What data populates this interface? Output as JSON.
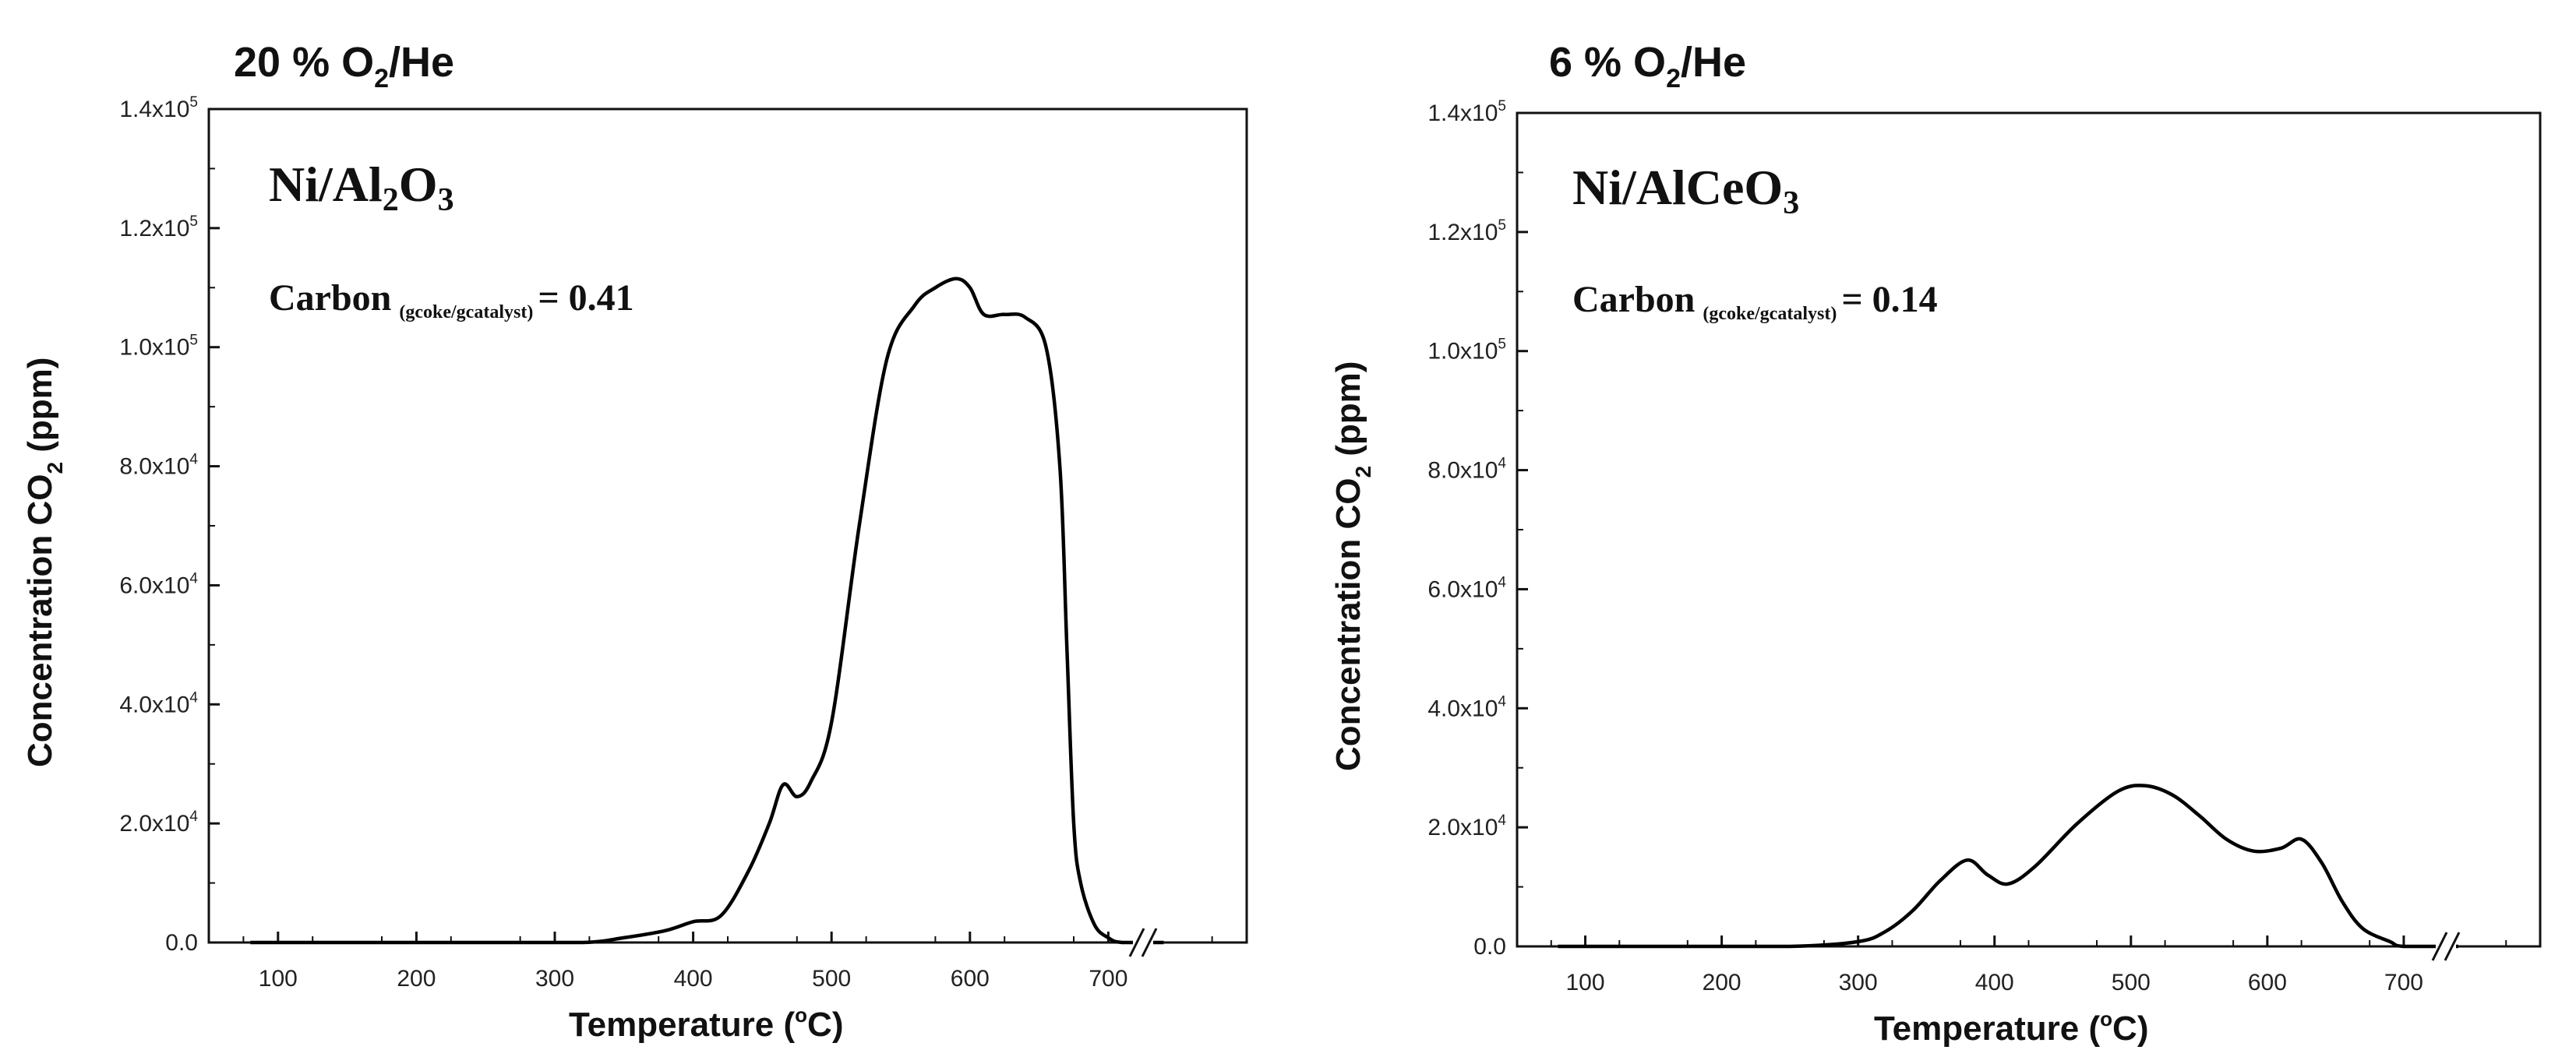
{
  "chart_data": [
    {
      "type": "line",
      "condition_prefix": "20 % O",
      "condition_sub": "2",
      "condition_suffix": "/He",
      "catalyst_main": "Ni/Al",
      "catalyst_sub1": "2",
      "catalyst_mid": "O",
      "catalyst_sub2": "3",
      "carbon_label": "Carbon",
      "carbon_sub": "(gcoke/gcatalyst)",
      "carbon_value": "= 0.41",
      "xlabel_main": "Temperature (",
      "xlabel_sup": "o",
      "xlabel_end": "C)",
      "ylabel_main": "Concentration CO",
      "ylabel_sub": "2",
      "ylabel_end": " (ppm)",
      "x_ticks": [
        "100",
        "200",
        "300",
        "400",
        "500",
        "600",
        "700"
      ],
      "x_tick_values": [
        100,
        200,
        300,
        400,
        500,
        600,
        700
      ],
      "y_tick_mantissa": [
        "0.0",
        "2.0x10",
        "4.0x10",
        "6.0x10",
        "8.0x10",
        "1.0x10",
        "1.2x10",
        "1.4x10"
      ],
      "y_tick_exp": [
        "",
        "4",
        "4",
        "4",
        "4",
        "5",
        "5",
        "5"
      ],
      "y_tick_values": [
        0,
        20000,
        40000,
        60000,
        80000,
        100000,
        120000,
        140000
      ],
      "xlim": [
        50,
        800
      ],
      "ylim": [
        0,
        140000
      ],
      "axis_break_at": 735,
      "series": [
        {
          "name": "CO2",
          "x": [
            80,
            150,
            250,
            320,
            350,
            380,
            400,
            420,
            440,
            455,
            465,
            475,
            485,
            500,
            520,
            540,
            560,
            575,
            590,
            600,
            610,
            625,
            640,
            655,
            665,
            670,
            675,
            680,
            690,
            700,
            710,
            740
          ],
          "values": [
            0,
            0,
            0,
            0,
            800,
            2000,
            3500,
            4500,
            12000,
            20000,
            26500,
            24500,
            27000,
            37000,
            70000,
            98000,
            107000,
            110000,
            111500,
            110000,
            105500,
            105500,
            105000,
            100000,
            80000,
            50000,
            20000,
            10000,
            3000,
            800,
            0,
            0
          ]
        }
      ]
    },
    {
      "type": "line",
      "condition_prefix": "6 % O",
      "condition_sub": "2",
      "condition_suffix": "/He",
      "catalyst_main": "Ni/AlCeO",
      "catalyst_sub1": "3",
      "carbon_label": "Carbon",
      "carbon_sub": "(gcoke/gcatalyst)",
      "carbon_value": "= 0.14",
      "xlabel_main": "Temperature (",
      "xlabel_sup": "o",
      "xlabel_end": "C)",
      "ylabel_main": "Concentration CO",
      "ylabel_sub": "2",
      "ylabel_end": " (ppm)",
      "x_ticks": [
        "100",
        "200",
        "300",
        "400",
        "500",
        "600",
        "700"
      ],
      "x_tick_values": [
        100,
        200,
        300,
        400,
        500,
        600,
        700
      ],
      "y_tick_mantissa": [
        "0.0",
        "2.0x10",
        "4.0x10",
        "6.0x10",
        "8.0x10",
        "1.0x10",
        "1.2x10",
        "1.4x10"
      ],
      "y_tick_exp": [
        "",
        "4",
        "4",
        "4",
        "4",
        "5",
        "5",
        "5"
      ],
      "y_tick_values": [
        0,
        20000,
        40000,
        60000,
        80000,
        100000,
        120000,
        140000
      ],
      "xlim": [
        50,
        800
      ],
      "ylim": [
        0,
        140000
      ],
      "axis_break_at": 735,
      "series": [
        {
          "name": "CO2",
          "x": [
            80,
            150,
            250,
            300,
            320,
            340,
            360,
            380,
            395,
            410,
            430,
            460,
            490,
            510,
            530,
            550,
            570,
            590,
            610,
            625,
            640,
            655,
            670,
            690,
            700,
            740
          ],
          "values": [
            0,
            0,
            0,
            800,
            2500,
            6000,
            11000,
            14500,
            12000,
            10500,
            13500,
            20500,
            26000,
            27000,
            25500,
            22000,
            18000,
            16000,
            16500,
            18000,
            14000,
            7500,
            3000,
            800,
            0,
            0
          ]
        }
      ]
    }
  ]
}
